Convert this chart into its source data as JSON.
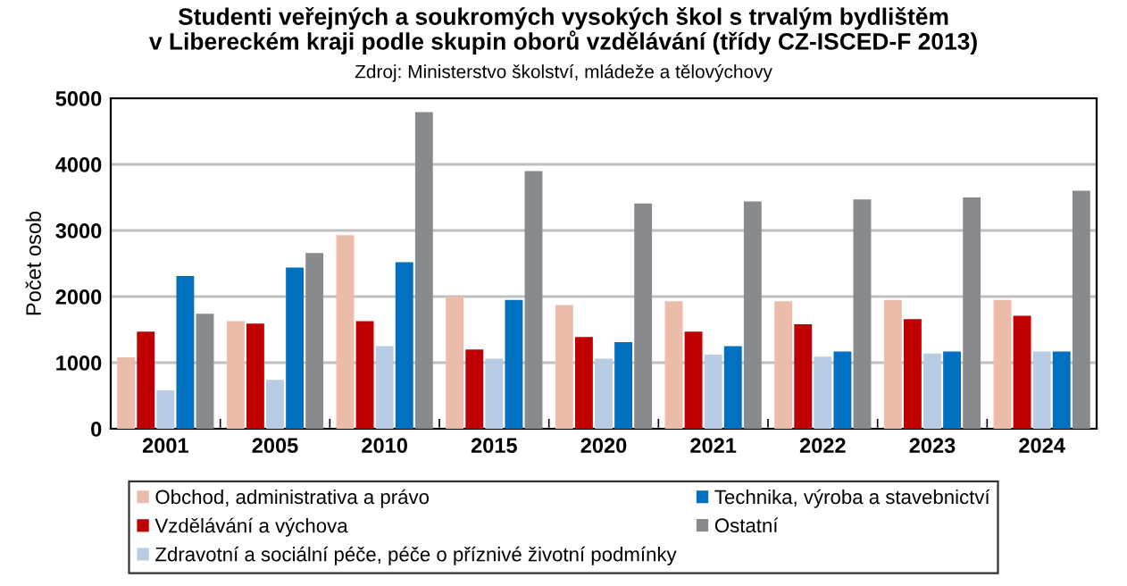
{
  "chart_data": {
    "type": "bar",
    "title": "Studenti veřejných a soukromých vysokých škol s trvalým bydlištěm\nv Libereckém kraji podle skupin oborů vzdělávání (třídy CZ-ISCED-F 2013)",
    "subtitle": "Zdroj: Ministerstvo školství, mládeže a tělovýchovy",
    "ylabel": "Počet osob",
    "categories": [
      "2001",
      "2005",
      "2010",
      "2015",
      "2020",
      "2021",
      "2022",
      "2023",
      "2024"
    ],
    "series": [
      {
        "name": "Obchod, administrativa a právo",
        "color": "#ebbcaa",
        "values": [
          1080,
          1630,
          2930,
          2000,
          1870,
          1930,
          1930,
          1950,
          1950
        ]
      },
      {
        "name": "Vzdělávání a výchova",
        "color": "#c00000",
        "values": [
          1470,
          1590,
          1630,
          1200,
          1390,
          1470,
          1580,
          1660,
          1710
        ]
      },
      {
        "name": "Zdravotní a sociální péče, péče o příznivé životní podmínky",
        "color": "#b8cce4",
        "values": [
          580,
          740,
          1250,
          1060,
          1060,
          1120,
          1090,
          1140,
          1170
        ]
      },
      {
        "name": "Technika, výroba a stavebnictví",
        "color": "#0070c0",
        "values": [
          2310,
          2440,
          2520,
          1950,
          1310,
          1250,
          1170,
          1170,
          1170
        ]
      },
      {
        "name": "Ostatní",
        "color": "#888a8e",
        "values": [
          1740,
          2660,
          4790,
          3900,
          3410,
          3440,
          3470,
          3500,
          3600
        ]
      }
    ],
    "ylim": [
      0,
      5000
    ],
    "yticks": [
      0,
      1000,
      2000,
      3000,
      4000,
      5000
    ],
    "grid": "y",
    "legend": "bottom"
  }
}
